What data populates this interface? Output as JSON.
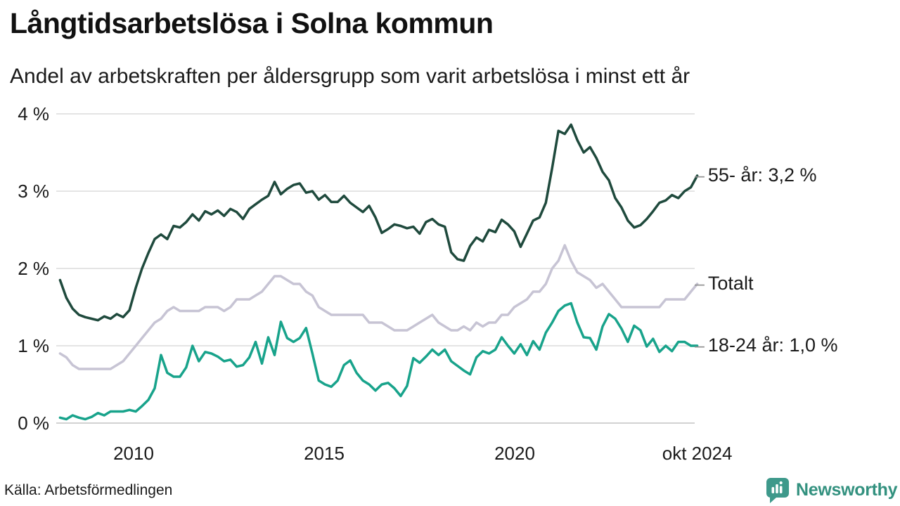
{
  "header": {
    "title": "Långtidsarbetslösa i Solna kommun",
    "subtitle": "Andel av arbetskraften per åldersgrupp som varit arbetslösa i minst ett år"
  },
  "footer": {
    "source": "Källa: Arbetsförmedlingen",
    "brand": "Newsworthy"
  },
  "colors": {
    "gridline": "#e4e4e4",
    "axis_line": "#d2d2d2",
    "text": "#1a1a1a",
    "end_label_dash": "#8f8f8f",
    "brand_teal": "#3e998b"
  },
  "chart_data": {
    "type": "line",
    "title": "Långtidsarbetslösa i Solna kommun",
    "subtitle": "Andel av arbetskraften per åldersgrupp som varit arbetslösa i minst ett år",
    "grid": true,
    "legend_position": "right-end-labels",
    "x_start": 2008.07,
    "x_end": 2024.79,
    "y_axis": {
      "min": 0,
      "max": 4,
      "step": 1,
      "labels": [
        "0 %",
        "1 %",
        "2 %",
        "3 %",
        "4 %"
      ]
    },
    "x_axis": {
      "ticks": [
        {
          "t": 2010,
          "label": "2010"
        },
        {
          "t": 2015,
          "label": "2015"
        },
        {
          "t": 2020,
          "label": "2020"
        },
        {
          "t": 2024.79,
          "label": "okt 2024"
        }
      ]
    },
    "series": [
      {
        "id": "totalt",
        "name": "Totalt",
        "color": "#c7c4d4",
        "end_label": "Totalt",
        "end_value": 1.8,
        "values": [
          0.9,
          0.85,
          0.75,
          0.7,
          0.7,
          0.7,
          0.7,
          0.7,
          0.7,
          0.75,
          0.8,
          0.9,
          1.0,
          1.1,
          1.2,
          1.3,
          1.35,
          1.45,
          1.5,
          1.45,
          1.45,
          1.45,
          1.45,
          1.5,
          1.5,
          1.5,
          1.45,
          1.5,
          1.6,
          1.6,
          1.6,
          1.65,
          1.7,
          1.8,
          1.9,
          1.9,
          1.85,
          1.8,
          1.8,
          1.7,
          1.65,
          1.5,
          1.45,
          1.4,
          1.4,
          1.4,
          1.4,
          1.4,
          1.4,
          1.3,
          1.3,
          1.3,
          1.25,
          1.2,
          1.2,
          1.2,
          1.25,
          1.3,
          1.35,
          1.4,
          1.3,
          1.25,
          1.2,
          1.2,
          1.25,
          1.2,
          1.3,
          1.25,
          1.3,
          1.3,
          1.4,
          1.4,
          1.5,
          1.55,
          1.6,
          1.7,
          1.7,
          1.8,
          2.0,
          2.1,
          2.3,
          2.1,
          1.95,
          1.9,
          1.85,
          1.75,
          1.8,
          1.7,
          1.6,
          1.5,
          1.5,
          1.5,
          1.5,
          1.5,
          1.5,
          1.5,
          1.6,
          1.6,
          1.6,
          1.6,
          1.7,
          1.8
        ]
      },
      {
        "id": "55-ar",
        "name": "55- år",
        "color": "#1f4a3d",
        "end_label": "55- år: 3,2 %",
        "end_value": 3.2,
        "values": [
          1.85,
          1.62,
          1.48,
          1.4,
          1.37,
          1.35,
          1.33,
          1.38,
          1.35,
          1.41,
          1.37,
          1.46,
          1.75,
          2.0,
          2.2,
          2.38,
          2.44,
          2.38,
          2.55,
          2.53,
          2.6,
          2.7,
          2.62,
          2.74,
          2.7,
          2.75,
          2.68,
          2.77,
          2.73,
          2.64,
          2.77,
          2.83,
          2.89,
          2.94,
          3.12,
          2.96,
          3.03,
          3.08,
          3.1,
          2.98,
          3.0,
          2.89,
          2.95,
          2.86,
          2.86,
          2.94,
          2.85,
          2.79,
          2.73,
          2.81,
          2.66,
          2.46,
          2.51,
          2.57,
          2.55,
          2.52,
          2.54,
          2.45,
          2.6,
          2.64,
          2.57,
          2.54,
          2.21,
          2.12,
          2.1,
          2.29,
          2.4,
          2.35,
          2.5,
          2.47,
          2.63,
          2.57,
          2.48,
          2.28,
          2.45,
          2.62,
          2.66,
          2.85,
          3.3,
          3.78,
          3.74,
          3.86,
          3.66,
          3.5,
          3.57,
          3.43,
          3.25,
          3.14,
          2.91,
          2.79,
          2.62,
          2.53,
          2.56,
          2.64,
          2.74,
          2.85,
          2.88,
          2.95,
          2.91,
          3.0,
          3.05,
          3.2
        ]
      },
      {
        "id": "18-24-ar",
        "name": "18-24 år",
        "color": "#18a38b",
        "end_label": "18-24 år: 1,0 %",
        "end_value": 1.0,
        "values": [
          0.07,
          0.05,
          0.1,
          0.07,
          0.05,
          0.08,
          0.13,
          0.1,
          0.15,
          0.15,
          0.15,
          0.17,
          0.15,
          0.22,
          0.3,
          0.45,
          0.88,
          0.65,
          0.6,
          0.6,
          0.72,
          1.0,
          0.8,
          0.92,
          0.9,
          0.86,
          0.8,
          0.82,
          0.73,
          0.75,
          0.85,
          1.05,
          0.77,
          1.11,
          0.88,
          1.31,
          1.1,
          1.05,
          1.1,
          1.23,
          0.9,
          0.55,
          0.5,
          0.47,
          0.55,
          0.75,
          0.81,
          0.65,
          0.55,
          0.5,
          0.42,
          0.5,
          0.52,
          0.45,
          0.35,
          0.48,
          0.84,
          0.78,
          0.86,
          0.95,
          0.88,
          0.95,
          0.8,
          0.74,
          0.68,
          0.63,
          0.85,
          0.93,
          0.9,
          0.95,
          1.11,
          1.0,
          0.9,
          1.02,
          0.88,
          1.06,
          0.95,
          1.17,
          1.3,
          1.45,
          1.52,
          1.55,
          1.3,
          1.11,
          1.1,
          0.95,
          1.25,
          1.41,
          1.35,
          1.22,
          1.05,
          1.26,
          1.2,
          0.99,
          1.09,
          0.92,
          1.0,
          0.93,
          1.05,
          1.05,
          1.0,
          1.0
        ]
      }
    ]
  }
}
